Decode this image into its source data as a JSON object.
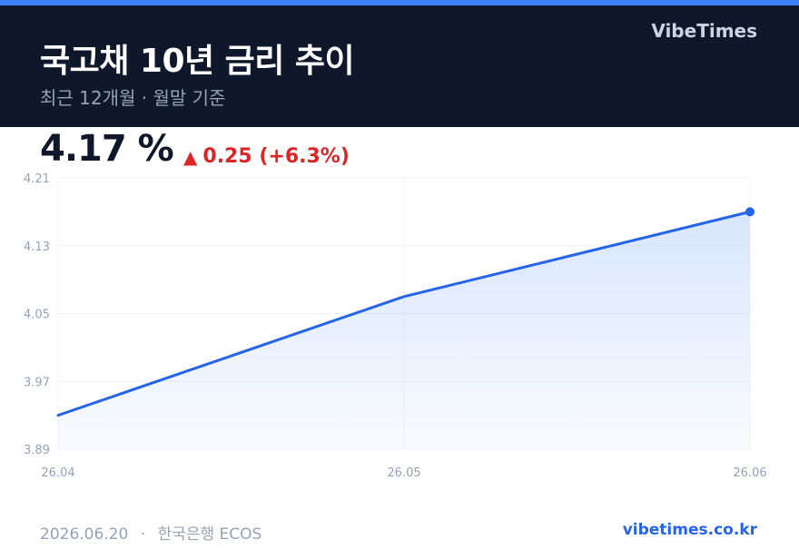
{
  "header": {
    "title": "국고채 10년 금리 추이",
    "subtitle": "최근 12개월 · 월말 기준",
    "brand": "VibeTimes"
  },
  "summary": {
    "current": "4.17 %",
    "change": "0.25 (+6.3%)"
  },
  "footer": {
    "date": "2026.06.20",
    "separator": "·",
    "source": "한국은행 ECOS",
    "site": "vibetimes.co.kr"
  },
  "colors": {
    "accent": "#3b82f6",
    "line": "#2563eb",
    "header_bg": "#0f172a",
    "up": "#dc2626"
  },
  "chart_data": {
    "type": "area",
    "title": "",
    "xlabel": "",
    "ylabel": "",
    "categories": [
      "26.04",
      "26.05",
      "26.06"
    ],
    "series": [
      {
        "values": [
          3.93,
          4.07,
          4.17
        ]
      }
    ],
    "ylim": [
      3.89,
      4.21
    ],
    "yticks": [
      "4.21",
      "4.13",
      "4.05",
      "3.97",
      "3.89"
    ],
    "grid": true,
    "legend": "none"
  }
}
